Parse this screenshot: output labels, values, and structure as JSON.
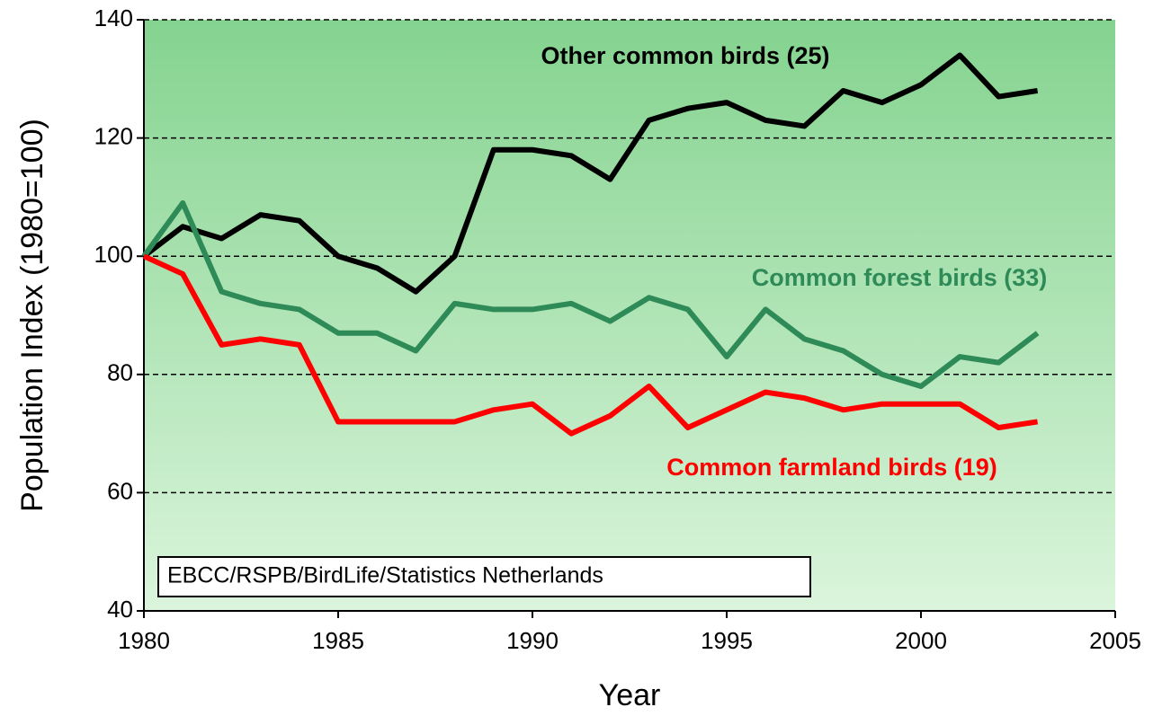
{
  "chart_data": {
    "type": "line",
    "x_label": "Year",
    "y_label": "Population Index (1980=100)",
    "annotation": "EBCC/RSPB/BirdLife/Statistics Netherlands",
    "x": [
      1980,
      1981,
      1982,
      1983,
      1984,
      1985,
      1986,
      1987,
      1988,
      1989,
      1990,
      1991,
      1992,
      1993,
      1994,
      1995,
      1996,
      1997,
      1998,
      1999,
      2000,
      2001,
      2002,
      2003
    ],
    "series": [
      {
        "name": "Other common birds (25)",
        "color": "#000000",
        "values": [
          100,
          105,
          103,
          107,
          106,
          100,
          98,
          94,
          100,
          118,
          118,
          117,
          113,
          123,
          125,
          126,
          123,
          122,
          128,
          126,
          129,
          134,
          127,
          128
        ]
      },
      {
        "name": "Common forest birds (33)",
        "color": "#2e8b57",
        "values": [
          100,
          109,
          94,
          92,
          91,
          87,
          87,
          84,
          92,
          91,
          91,
          92,
          89,
          93,
          91,
          83,
          91,
          86,
          84,
          80,
          78,
          83,
          82,
          87
        ]
      },
      {
        "name": "Common farmland birds (19)",
        "color": "#ff0000",
        "values": [
          100,
          97,
          85,
          86,
          85,
          72,
          72,
          72,
          72,
          74,
          75,
          70,
          73,
          78,
          71,
          74,
          77,
          76,
          74,
          75,
          75,
          75,
          71,
          72
        ]
      }
    ],
    "xlim": [
      1980,
      2005
    ],
    "xticks": [
      1980,
      1985,
      1990,
      1995,
      2000,
      2005
    ],
    "ylim": [
      40,
      140
    ],
    "yticks": [
      40,
      60,
      80,
      100,
      120,
      140
    ],
    "grid": true
  }
}
